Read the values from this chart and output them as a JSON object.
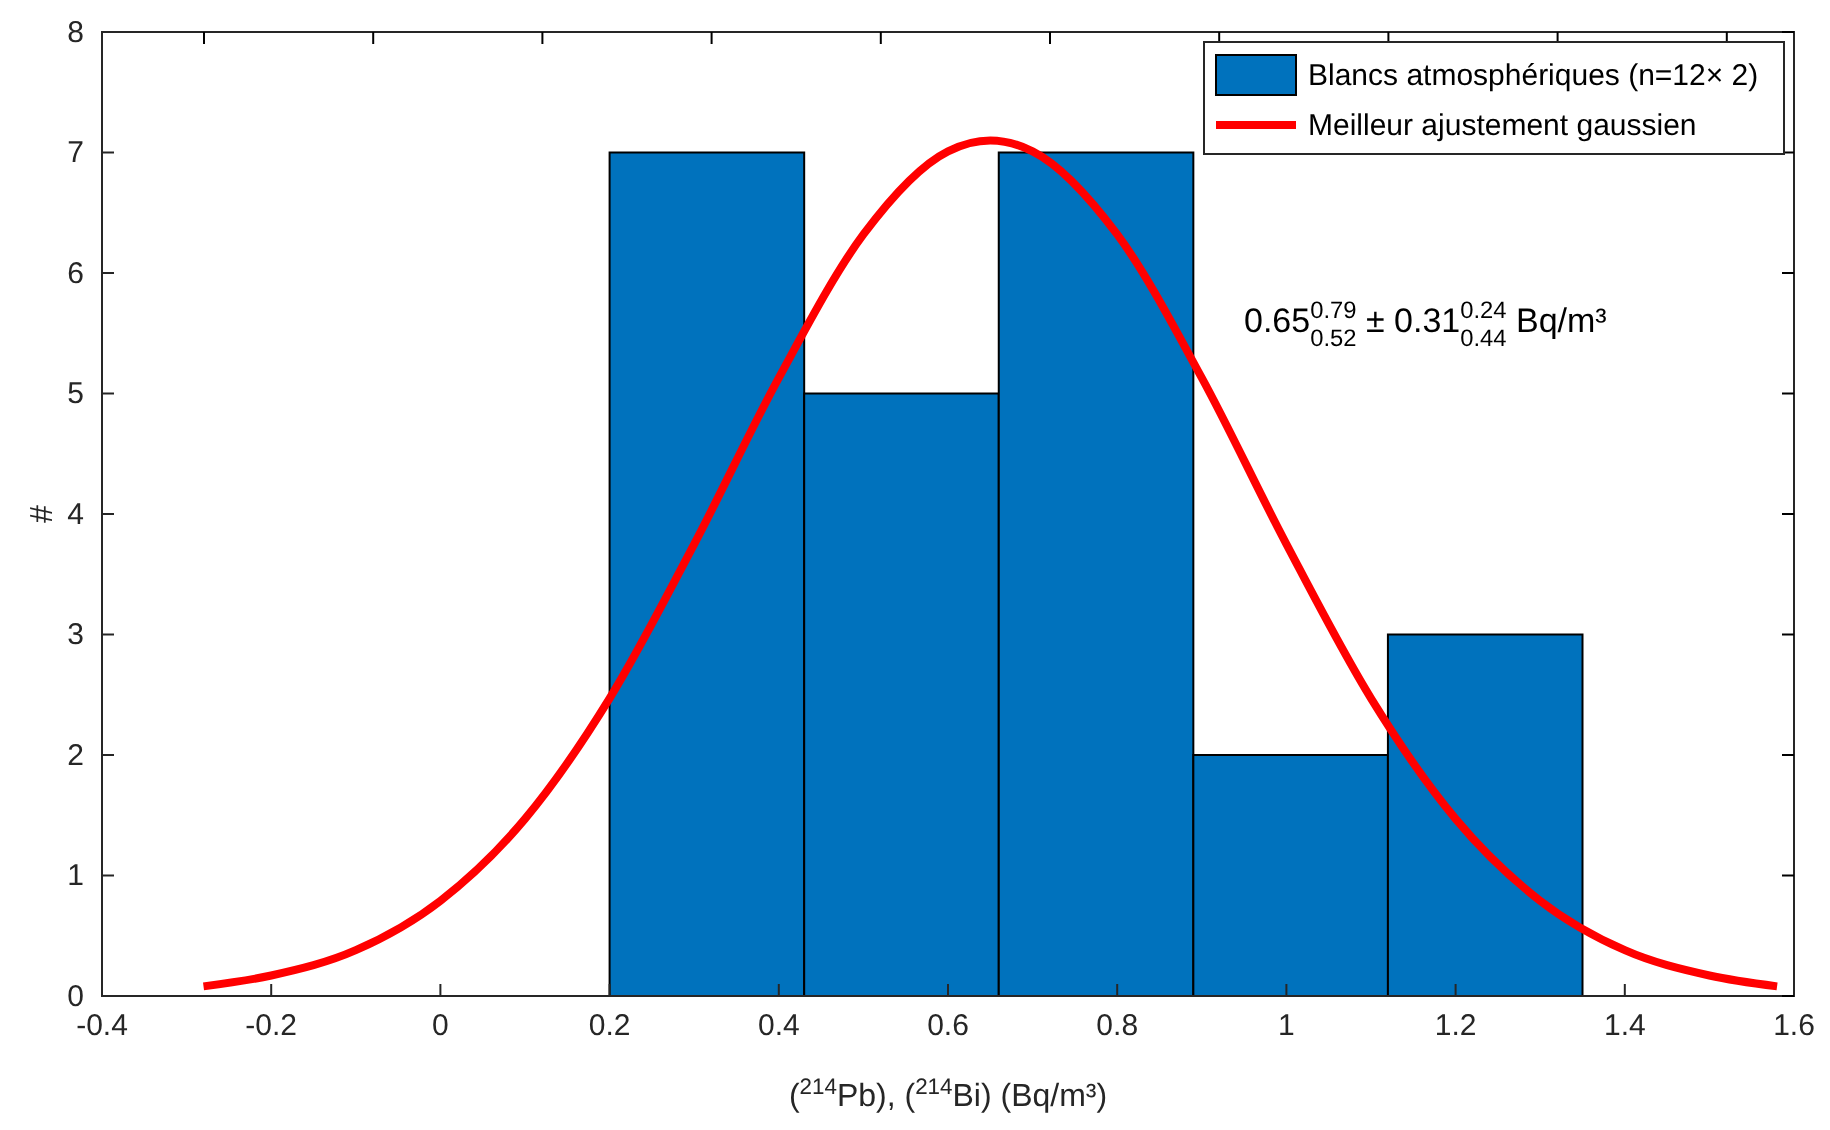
{
  "chart_data": {
    "type": "histogram",
    "xlabel": "($^{214}$Pb), ($^{214}$Bi) (Bq/m³)",
    "ylabel": "#",
    "xlim": [
      -0.4,
      1.6
    ],
    "xticks": [
      -0.4,
      -0.2,
      0,
      0.2,
      0.4,
      0.6,
      0.8,
      1,
      1.2,
      1.4,
      1.6
    ],
    "ylim": [
      0,
      8
    ],
    "yticks": [
      0,
      1,
      2,
      3,
      4,
      5,
      6,
      7,
      8
    ],
    "grid": false,
    "legend": "top right",
    "annotations": [
      "0.65$^{0.79}$$_{0.52}$ ± 0.31$^{0.24}$$_{0.44}$ Bq/m³"
    ],
    "series": [
      {
        "name": "Blancs atmosphériques (n=12× 2)",
        "color": "#0072bd",
        "bins": [
          0.2,
          0.43,
          0.66,
          0.89,
          1.12,
          1.35
        ],
        "values": [
          7,
          5,
          7,
          2,
          3
        ]
      },
      {
        "type": "line",
        "name": "Meilleur ajustement gaussien",
        "color": "#ff0000",
        "x": [
          -0.28,
          -0.2,
          -0.1,
          0,
          0.1,
          0.2,
          0.3,
          0.4,
          0.5,
          0.6,
          0.65,
          0.7,
          0.8,
          0.9,
          1,
          1.1,
          1.2,
          1.3,
          1.4,
          1.5,
          1.58
        ],
        "values": [
          0.08,
          0.17,
          0.38,
          0.79,
          1.47,
          2.47,
          3.75,
          5.13,
          6.32,
          7.01,
          7.1,
          7.01,
          6.32,
          5.13,
          3.75,
          2.47,
          1.47,
          0.79,
          0.38,
          0.17,
          0.08
        ]
      }
    ]
  }
}
